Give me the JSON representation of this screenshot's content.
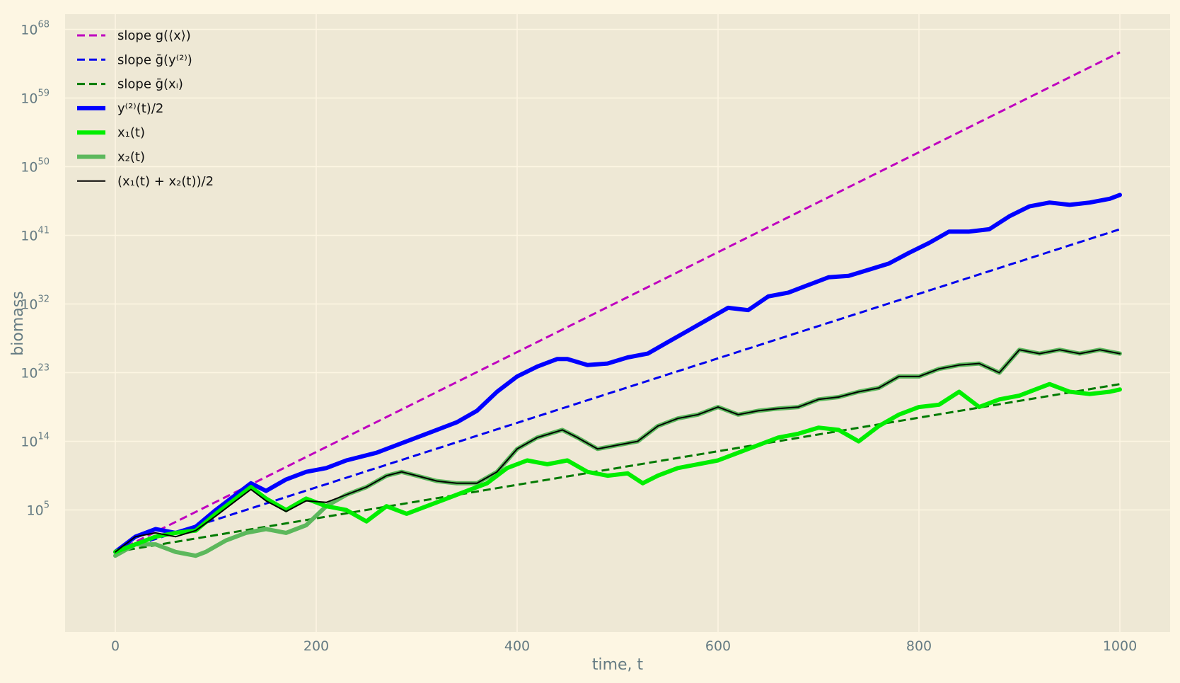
{
  "chart_data": {
    "type": "line",
    "xlabel": "time, t",
    "ylabel": "biomass",
    "y_scale": "log",
    "grid": true,
    "legend_placement": "upper-left",
    "xlim": [
      -50,
      1050
    ],
    "ylim_exponent": [
      -11,
      70
    ],
    "x_ticks": [
      0,
      200,
      400,
      600,
      800,
      1000
    ],
    "y_ticks": [
      {
        "exp": 5,
        "label": "10^5"
      },
      {
        "exp": 14,
        "label": "10^14"
      },
      {
        "exp": 23,
        "label": "10^23"
      },
      {
        "exp": 32,
        "label": "10^32"
      },
      {
        "exp": 41,
        "label": "10^41"
      },
      {
        "exp": 50,
        "label": "10^50"
      },
      {
        "exp": 59,
        "label": "10^59"
      },
      {
        "exp": 68,
        "label": "10^68"
      }
    ],
    "series": [
      {
        "name": "slope g(⟨x⟩)",
        "color": "#bf00bf",
        "style": "dashed",
        "width": 3,
        "x": [
          0,
          1000
        ],
        "log10_y": [
          -0.5,
          65
        ]
      },
      {
        "name": "slope ḡ(y⁽²⁾)",
        "color": "#0000ee",
        "style": "dashed",
        "width": 3,
        "x": [
          0,
          1000
        ],
        "log10_y": [
          -0.5,
          41.8
        ]
      },
      {
        "name": "slope ḡ(xᵢ)",
        "color": "#007a00",
        "style": "dashed",
        "width": 3,
        "x": [
          0,
          1000
        ],
        "log10_y": [
          -0.5,
          21.5
        ]
      },
      {
        "name": "y⁽²⁾(t)/2",
        "color": "#0000ff",
        "style": "solid",
        "width": 6,
        "x": [
          0,
          20,
          40,
          60,
          80,
          100,
          120,
          135,
          150,
          170,
          190,
          210,
          230,
          260,
          280,
          300,
          320,
          340,
          360,
          380,
          400,
          420,
          440,
          450,
          470,
          490,
          510,
          530,
          550,
          570,
          590,
          610,
          630,
          650,
          670,
          690,
          710,
          730,
          750,
          770,
          790,
          810,
          830,
          850,
          870,
          890,
          910,
          930,
          950,
          970,
          990,
          1000
        ],
        "log10_y": [
          -0.5,
          1.5,
          2.5,
          2.0,
          2.8,
          5,
          7,
          8.5,
          7.5,
          9,
          10,
          10.5,
          11.5,
          12.5,
          13.5,
          14.5,
          15.5,
          16.5,
          18,
          20.5,
          22.5,
          23.8,
          24.8,
          24.8,
          24.0,
          24.2,
          25,
          25.5,
          27,
          28.5,
          30,
          31.5,
          31.2,
          33,
          33.5,
          34.5,
          35.5,
          35.7,
          36.5,
          37.3,
          38.7,
          40,
          41.5,
          41.5,
          41.8,
          43.5,
          44.8,
          45.3,
          45.0,
          45.3,
          45.8,
          46.3
        ]
      },
      {
        "name": "x₁(t)",
        "color": "#00ee00",
        "style": "solid",
        "width": 6,
        "x": [
          0,
          20,
          40,
          60,
          80,
          100,
          120,
          135,
          150,
          170,
          190,
          210,
          230,
          250,
          270,
          290,
          310,
          330,
          350,
          370,
          390,
          410,
          430,
          450,
          470,
          490,
          510,
          525,
          540,
          560,
          580,
          600,
          620,
          640,
          660,
          680,
          700,
          720,
          740,
          760,
          780,
          800,
          820,
          840,
          860,
          880,
          900,
          920,
          930,
          950,
          970,
          990,
          1000
        ],
        "log10_y": [
          -0.5,
          0.5,
          1.5,
          2.0,
          2.3,
          4.5,
          6.5,
          8,
          6.5,
          5,
          6.5,
          5.5,
          5,
          3.5,
          5.5,
          4.5,
          5.5,
          6.5,
          7.5,
          8.5,
          10.5,
          11.5,
          11,
          11.5,
          10,
          9.5,
          9.8,
          8.5,
          9.5,
          10.5,
          11,
          11.5,
          12.5,
          13.5,
          14.5,
          15,
          15.8,
          15.5,
          14,
          16,
          17.5,
          18.5,
          18.8,
          20.5,
          18.5,
          19.5,
          20,
          21,
          21.5,
          20.5,
          20.2,
          20.5,
          20.8
        ]
      },
      {
        "name": "x₂(t)",
        "color": "#5cb85c",
        "style": "solid",
        "width": 6,
        "x": [
          0,
          20,
          40,
          60,
          80,
          90,
          110,
          130,
          150,
          170,
          190,
          210,
          230,
          250,
          270,
          285,
          300,
          320,
          340,
          360,
          380,
          400,
          420,
          445,
          460,
          480,
          500,
          520,
          540,
          560,
          580,
          600,
          620,
          640,
          660,
          680,
          700,
          720,
          740,
          760,
          780,
          800,
          820,
          840,
          860,
          880,
          900,
          920,
          940,
          960,
          980,
          1000
        ],
        "log10_y": [
          -1,
          0.5,
          0.5,
          -0.5,
          -1,
          -0.5,
          1,
          2,
          2.5,
          2,
          3,
          5.5,
          7,
          8,
          9.5,
          10,
          9.5,
          8.8,
          8.5,
          8.5,
          10,
          13,
          14.5,
          15.5,
          14.5,
          13,
          13.5,
          14,
          16,
          17,
          17.5,
          18.5,
          17.5,
          18,
          18.3,
          18.5,
          19.5,
          19.8,
          20.5,
          21,
          22.5,
          22.5,
          23.5,
          24,
          24.2,
          23,
          26,
          25.5,
          26,
          25.5,
          26,
          25.5
        ]
      },
      {
        "name": "(x₁(t) + x₂(t))/2",
        "color": "#000000",
        "style": "solid",
        "width": 2,
        "x": [
          0,
          20,
          40,
          60,
          80,
          100,
          120,
          135,
          150,
          170,
          190,
          210,
          230,
          250,
          270,
          285,
          300,
          320,
          340,
          360,
          380,
          400,
          420,
          445,
          460,
          480,
          500,
          520,
          540,
          560,
          580,
          600,
          620,
          640,
          660,
          680,
          700,
          720,
          740,
          760,
          780,
          800,
          820,
          840,
          860,
          880,
          900,
          920,
          940,
          960,
          980,
          1000
        ],
        "log10_y": [
          -0.5,
          1.5,
          2.0,
          1.5,
          2.3,
          4.2,
          6.2,
          7.7,
          6.2,
          4.8,
          6.2,
          6.0,
          7.0,
          8.0,
          9.5,
          10,
          9.5,
          8.8,
          8.5,
          8.5,
          10,
          13,
          14.5,
          15.5,
          14.5,
          13,
          13.5,
          14,
          16,
          17,
          17.5,
          18.5,
          17.5,
          18,
          18.3,
          18.5,
          19.5,
          19.8,
          20.5,
          21,
          22.5,
          22.5,
          23.5,
          24,
          24.2,
          23,
          26,
          25.5,
          26,
          25.5,
          26,
          25.5
        ]
      }
    ]
  }
}
